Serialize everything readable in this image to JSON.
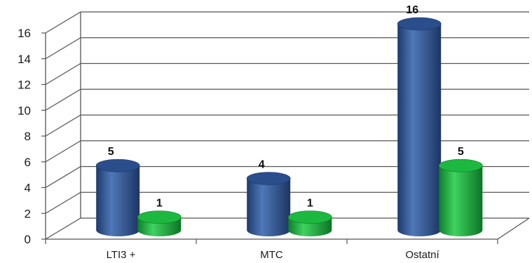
{
  "chart_data": {
    "type": "bar",
    "categories": [
      "LTI3 +",
      "MTC",
      "Ostatní"
    ],
    "series": [
      {
        "values": [
          5,
          4,
          16
        ],
        "color": "#2f5597"
      },
      {
        "values": [
          1,
          1,
          5
        ],
        "color": "#1aaa3a"
      }
    ],
    "ylim": [
      0,
      16
    ],
    "yticks": [
      0,
      2,
      4,
      6,
      8,
      10,
      12,
      14,
      16
    ],
    "grid": true,
    "style": "3d-cylinder"
  }
}
